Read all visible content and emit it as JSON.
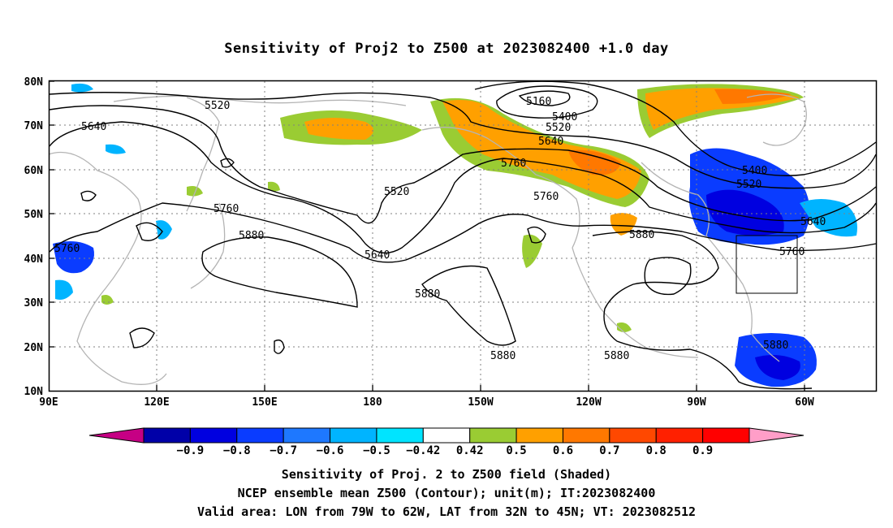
{
  "title": "Sensitivity of Proj2 to Z500 at 2023082400 +1.0 day",
  "lat_labels": [
    "80N",
    "70N",
    "60N",
    "50N",
    "40N",
    "30N",
    "20N",
    "10N"
  ],
  "lon_labels": [
    "90E",
    "120E",
    "150E",
    "180",
    "150W",
    "120W",
    "90W",
    "60W"
  ],
  "contour_labels": [
    {
      "text": "5160"
    },
    {
      "text": "5400"
    },
    {
      "text": "5400"
    },
    {
      "text": "5520"
    },
    {
      "text": "5520"
    },
    {
      "text": "5520"
    },
    {
      "text": "5520"
    },
    {
      "text": "5640"
    },
    {
      "text": "5640"
    },
    {
      "text": "5640"
    },
    {
      "text": "5640"
    },
    {
      "text": "5760"
    },
    {
      "text": "5760"
    },
    {
      "text": "5760"
    },
    {
      "text": "5760"
    },
    {
      "text": "5760"
    },
    {
      "text": "5880"
    },
    {
      "text": "5880"
    },
    {
      "text": "5880"
    },
    {
      "text": "5880"
    },
    {
      "text": "5880"
    },
    {
      "text": "5880"
    }
  ],
  "colorbar": {
    "colors": [
      "#c60084",
      "#0000a8",
      "#0000e0",
      "#0a3cff",
      "#1e78ff",
      "#00b4ff",
      "#00e4ff",
      "#ffffff",
      "#9acc33",
      "#ffa000",
      "#ff7800",
      "#ff4800",
      "#ff2000",
      "#ff0000",
      "#ff9ec8"
    ],
    "labels": [
      "-0.9",
      "-0.8",
      "-0.7",
      "-0.6",
      "-0.5",
      "-0.42",
      "0.42",
      "0.5",
      "0.6",
      "0.7",
      "0.8",
      "0.9"
    ]
  },
  "caption": {
    "line1": "Sensitivity of Proj. 2 to Z500 field (Shaded)",
    "line2": "NCEP ensemble mean Z500 (Contour); unit(m); IT:2023082400",
    "line3": "Valid area: LON from 79W to 62W, LAT from 32N to 45N; VT: 2023082512"
  },
  "colors": {
    "positive_low": "#9acc33",
    "positive_mid": "#ffa000",
    "positive_high": "#ff7800",
    "negative_mid": "#0a3cff",
    "negative_low": "#00b4ff",
    "coast": "#b4b4b4",
    "grid": "#808080"
  }
}
